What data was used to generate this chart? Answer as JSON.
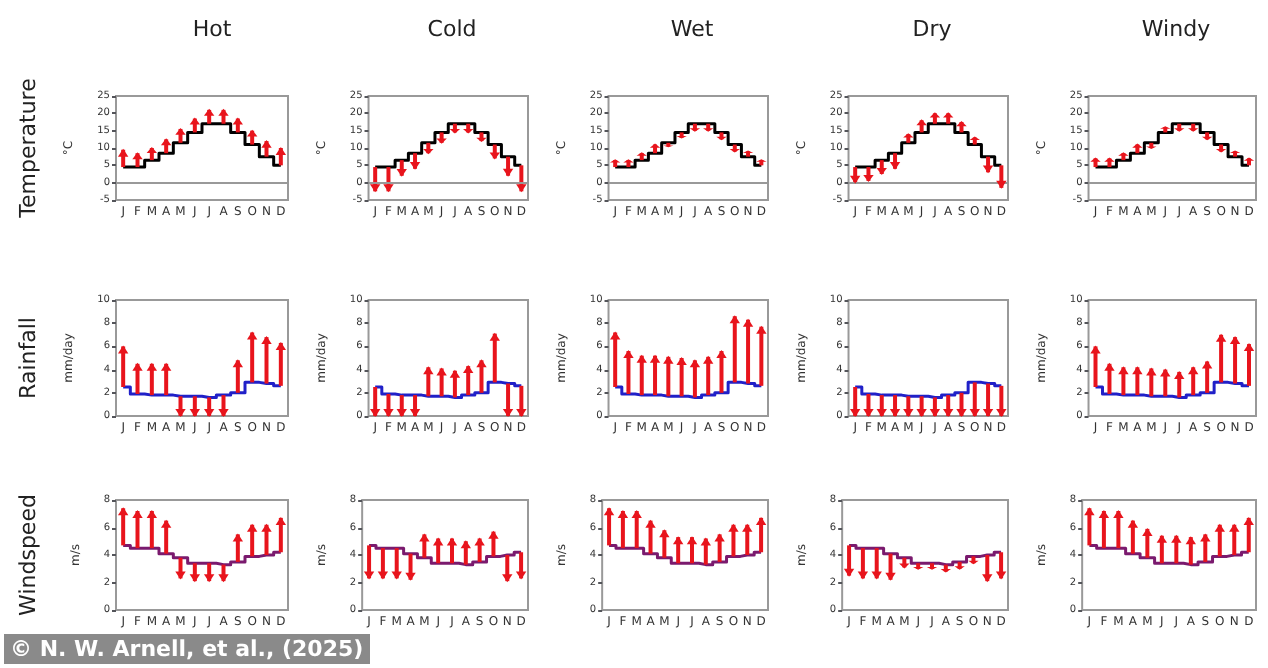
{
  "chart_data": [
    {
      "type": "step",
      "title": "Hot",
      "ylabel": "°C",
      "annotations": [
        "Temperature"
      ],
      "categories": [
        "J",
        "F",
        "M",
        "A",
        "M",
        "J",
        "J",
        "A",
        "S",
        "O",
        "N",
        "D"
      ],
      "ylim": [
        -5,
        25
      ],
      "yticks": [
        -5,
        0,
        5,
        10,
        15,
        20,
        25
      ],
      "grid": false,
      "ref_lines": [
        {
          "axis": "y",
          "value": 0,
          "color": "#999999"
        }
      ],
      "series": [
        {
          "color": "#000000",
          "values": [
            4.5,
            4.5,
            6.5,
            8.5,
            11.5,
            14.5,
            17,
            17,
            14.5,
            11,
            7.5,
            5
          ]
        },
        {
          "type": "bar",
          "color": "#e8141c",
          "base": [
            4.5,
            4.5,
            6.5,
            8.5,
            11.5,
            14.5,
            17,
            17,
            14.5,
            11,
            7.5,
            5
          ],
          "values": [
            5,
            4,
            3.5,
            4,
            4,
            4,
            4,
            4,
            4,
            4,
            4.5,
            5
          ]
        }
      ]
    },
    {
      "type": "step",
      "title": "Cold",
      "ylabel": "°C",
      "categories": [
        "J",
        "F",
        "M",
        "A",
        "M",
        "J",
        "J",
        "A",
        "S",
        "O",
        "N",
        "D"
      ],
      "ylim": [
        -5,
        25
      ],
      "yticks": [
        -5,
        0,
        5,
        10,
        15,
        20,
        25
      ],
      "grid": false,
      "ref_lines": [
        {
          "axis": "y",
          "value": 0,
          "color": "#999999"
        }
      ],
      "series": [
        {
          "color": "#000000",
          "values": [
            4.5,
            4.5,
            6.5,
            8.5,
            11.5,
            14.5,
            17,
            17,
            14.5,
            11,
            7.5,
            5
          ]
        },
        {
          "type": "bar",
          "color": "#e8141c",
          "base": [
            4.5,
            4.5,
            6.5,
            8.5,
            11.5,
            14.5,
            17,
            17,
            14.5,
            11,
            7.5,
            5
          ],
          "values": [
            -7,
            -7,
            -4.5,
            -4.5,
            -3,
            -3,
            -2.5,
            -2.5,
            -2.5,
            -4,
            -5.5,
            -7.5
          ]
        }
      ]
    },
    {
      "type": "step",
      "title": "Wet",
      "ylabel": "°C",
      "categories": [
        "J",
        "F",
        "M",
        "A",
        "M",
        "J",
        "J",
        "A",
        "S",
        "O",
        "N",
        "D"
      ],
      "ylim": [
        -5,
        25
      ],
      "yticks": [
        -5,
        0,
        5,
        10,
        15,
        20,
        25
      ],
      "grid": false,
      "ref_lines": [
        {
          "axis": "y",
          "value": 0,
          "color": "#999999"
        }
      ],
      "series": [
        {
          "color": "#000000",
          "values": [
            4.5,
            4.5,
            6.5,
            8.5,
            11.5,
            14.5,
            17,
            17,
            14.5,
            11,
            7.5,
            5
          ]
        },
        {
          "type": "bar",
          "color": "#e8141c",
          "base": [
            4.5,
            4.5,
            6.5,
            8.5,
            11.5,
            14.5,
            17,
            17,
            14.5,
            11,
            7.5,
            5
          ],
          "values": [
            2,
            2,
            2,
            2.5,
            -1,
            -1.5,
            -2,
            -2,
            -2,
            -2,
            1.5,
            1.5
          ]
        }
      ]
    },
    {
      "type": "step",
      "title": "Dry",
      "ylabel": "°C",
      "categories": [
        "J",
        "F",
        "M",
        "A",
        "M",
        "J",
        "J",
        "A",
        "S",
        "O",
        "N",
        "D"
      ],
      "ylim": [
        -5,
        25
      ],
      "yticks": [
        -5,
        0,
        5,
        10,
        15,
        20,
        25
      ],
      "grid": false,
      "ref_lines": [
        {
          "axis": "y",
          "value": 0,
          "color": "#999999"
        }
      ],
      "series": [
        {
          "color": "#000000",
          "values": [
            4.5,
            4.5,
            6.5,
            8.5,
            11.5,
            14.5,
            17,
            17,
            14.5,
            11,
            7.5,
            5
          ]
        },
        {
          "type": "bar",
          "color": "#e8141c",
          "base": [
            4.5,
            4.5,
            6.5,
            8.5,
            11.5,
            14.5,
            17,
            17,
            14.5,
            11,
            7.5,
            5
          ],
          "values": [
            -4.5,
            -4,
            -4,
            -4.5,
            2.5,
            3.5,
            3,
            3,
            3,
            2,
            -4.5,
            -6.5
          ]
        }
      ]
    },
    {
      "type": "step",
      "title": "Windy",
      "ylabel": "°C",
      "categories": [
        "J",
        "F",
        "M",
        "A",
        "M",
        "J",
        "J",
        "A",
        "S",
        "O",
        "N",
        "D"
      ],
      "ylim": [
        -5,
        25
      ],
      "yticks": [
        -5,
        0,
        5,
        10,
        15,
        20,
        25
      ],
      "grid": false,
      "ref_lines": [
        {
          "axis": "y",
          "value": 0,
          "color": "#999999"
        }
      ],
      "series": [
        {
          "color": "#000000",
          "values": [
            4.5,
            4.5,
            6.5,
            8.5,
            11.5,
            14.5,
            17,
            17,
            14.5,
            11,
            7.5,
            5
          ]
        },
        {
          "type": "bar",
          "color": "#e8141c",
          "base": [
            4.5,
            4.5,
            6.5,
            8.5,
            11.5,
            14.5,
            17,
            17,
            14.5,
            11,
            7.5,
            5
          ],
          "values": [
            2.5,
            2.5,
            2,
            2.5,
            -1.5,
            1.5,
            -2,
            -2,
            -2,
            -2,
            1.5,
            2
          ]
        }
      ]
    },
    {
      "type": "step",
      "ylabel": "mm/day",
      "annotations": [
        "Rainfall"
      ],
      "categories": [
        "J",
        "F",
        "M",
        "A",
        "M",
        "J",
        "J",
        "A",
        "S",
        "O",
        "N",
        "D"
      ],
      "ylim": [
        0,
        10
      ],
      "yticks": [
        0,
        2,
        4,
        6,
        8,
        10
      ],
      "grid": false,
      "series": [
        {
          "color": "#2020c8",
          "values": [
            2.5,
            1.9,
            1.8,
            1.8,
            1.7,
            1.7,
            1.6,
            1.8,
            2.0,
            2.9,
            2.8,
            2.6
          ]
        },
        {
          "type": "bar",
          "color": "#e8141c",
          "base": [
            2.5,
            1.9,
            1.8,
            1.8,
            1.7,
            1.7,
            1.6,
            1.8,
            2.0,
            2.9,
            2.8,
            2.6
          ],
          "values": [
            3.5,
            2.6,
            2.7,
            2.7,
            -1.7,
            -1.7,
            -1.6,
            -1.8,
            2.8,
            4.3,
            4,
            3.7
          ]
        }
      ]
    },
    {
      "type": "step",
      "ylabel": "mm/day",
      "categories": [
        "J",
        "F",
        "M",
        "A",
        "M",
        "J",
        "J",
        "A",
        "S",
        "O",
        "N",
        "D"
      ],
      "ylim": [
        0,
        10
      ],
      "yticks": [
        0,
        2,
        4,
        6,
        8,
        10
      ],
      "grid": false,
      "series": [
        {
          "color": "#2020c8",
          "values": [
            2.5,
            1.9,
            1.8,
            1.8,
            1.7,
            1.7,
            1.6,
            1.8,
            2.0,
            2.9,
            2.8,
            2.6
          ]
        },
        {
          "type": "bar",
          "color": "#e8141c",
          "base": [
            2.5,
            1.9,
            1.8,
            1.8,
            1.7,
            1.7,
            1.6,
            1.8,
            2.0,
            2.9,
            2.8,
            2.6
          ],
          "values": [
            -2.5,
            -1.9,
            -1.8,
            -1.8,
            2.5,
            2.4,
            2.3,
            2.5,
            2.8,
            4.2,
            -2.8,
            -2.6
          ]
        }
      ]
    },
    {
      "type": "step",
      "ylabel": "mm/day",
      "categories": [
        "J",
        "F",
        "M",
        "A",
        "M",
        "J",
        "J",
        "A",
        "S",
        "O",
        "N",
        "D"
      ],
      "ylim": [
        0,
        10
      ],
      "yticks": [
        0,
        2,
        4,
        6,
        8,
        10
      ],
      "grid": false,
      "series": [
        {
          "color": "#2020c8",
          "values": [
            2.5,
            1.9,
            1.8,
            1.8,
            1.7,
            1.7,
            1.6,
            1.8,
            2.0,
            2.9,
            2.8,
            2.6
          ]
        },
        {
          "type": "bar",
          "color": "#e8141c",
          "base": [
            2.5,
            1.9,
            1.8,
            1.8,
            1.7,
            1.7,
            1.6,
            1.8,
            2.0,
            2.9,
            2.8,
            2.6
          ],
          "values": [
            4.7,
            3.7,
            3.4,
            3.4,
            3.4,
            3.3,
            3.2,
            3.3,
            3.6,
            5.7,
            5.5,
            5.1
          ]
        }
      ]
    },
    {
      "type": "step",
      "ylabel": "mm/day",
      "categories": [
        "J",
        "F",
        "M",
        "A",
        "M",
        "J",
        "J",
        "A",
        "S",
        "O",
        "N",
        "D"
      ],
      "ylim": [
        0,
        10
      ],
      "yticks": [
        0,
        2,
        4,
        6,
        8,
        10
      ],
      "grid": false,
      "series": [
        {
          "color": "#2020c8",
          "values": [
            2.5,
            1.9,
            1.8,
            1.8,
            1.7,
            1.7,
            1.6,
            1.8,
            2.0,
            2.9,
            2.8,
            2.6
          ]
        },
        {
          "type": "bar",
          "color": "#e8141c",
          "base": [
            2.5,
            1.9,
            1.8,
            1.8,
            1.7,
            1.7,
            1.6,
            1.8,
            2.0,
            2.9,
            2.8,
            2.6
          ],
          "values": [
            -2.5,
            -1.9,
            -1.8,
            -1.8,
            -1.7,
            -1.7,
            -1.6,
            -1.8,
            -2.0,
            -2.9,
            -2.8,
            -2.6
          ]
        }
      ]
    },
    {
      "type": "step",
      "ylabel": "mm/day",
      "categories": [
        "J",
        "F",
        "M",
        "A",
        "M",
        "J",
        "J",
        "A",
        "S",
        "O",
        "N",
        "D"
      ],
      "ylim": [
        0,
        10
      ],
      "yticks": [
        0,
        2,
        4,
        6,
        8,
        10
      ],
      "grid": false,
      "series": [
        {
          "color": "#2020c8",
          "values": [
            2.5,
            1.9,
            1.8,
            1.8,
            1.7,
            1.7,
            1.6,
            1.8,
            2.0,
            2.9,
            2.8,
            2.6
          ]
        },
        {
          "type": "bar",
          "color": "#e8141c",
          "base": [
            2.5,
            1.9,
            1.8,
            1.8,
            1.7,
            1.7,
            1.6,
            1.8,
            2.0,
            2.9,
            2.8,
            2.6
          ],
          "values": [
            3.5,
            2.6,
            2.4,
            2.4,
            2.4,
            2.3,
            2.2,
            2.4,
            2.7,
            4.1,
            4,
            3.6
          ]
        }
      ]
    },
    {
      "type": "step",
      "ylabel": "m/s",
      "annotations": [
        "Windspeed",
        "© N. W. Arnell, et al., (2025)"
      ],
      "categories": [
        "J",
        "F",
        "M",
        "A",
        "M",
        "J",
        "J",
        "A",
        "S",
        "O",
        "N",
        "D"
      ],
      "ylim": [
        0,
        8
      ],
      "yticks": [
        0,
        2,
        4,
        6,
        8
      ],
      "grid": false,
      "series": [
        {
          "color": "#7a1a6e",
          "values": [
            4.7,
            4.5,
            4.5,
            4.1,
            3.8,
            3.4,
            3.4,
            3.3,
            3.5,
            3.9,
            4.0,
            4.2
          ]
        },
        {
          "type": "bar",
          "color": "#e8141c",
          "base": [
            4.7,
            4.5,
            4.5,
            4.1,
            3.8,
            3.4,
            3.4,
            3.3,
            3.5,
            3.9,
            4.0,
            4.2
          ],
          "values": [
            2.7,
            2.7,
            2.7,
            2.4,
            -1.5,
            -1.3,
            -1.3,
            -1.2,
            2,
            2.3,
            2.2,
            2.5
          ]
        }
      ]
    },
    {
      "type": "step",
      "ylabel": "m/s",
      "categories": [
        "J",
        "F",
        "M",
        "A",
        "M",
        "J",
        "J",
        "A",
        "S",
        "O",
        "N",
        "D"
      ],
      "ylim": [
        0,
        8
      ],
      "yticks": [
        0,
        2,
        4,
        6,
        8
      ],
      "grid": false,
      "series": [
        {
          "color": "#7a1a6e",
          "values": [
            4.7,
            4.5,
            4.5,
            4.1,
            3.8,
            3.4,
            3.4,
            3.3,
            3.5,
            3.9,
            4.0,
            4.2
          ]
        },
        {
          "type": "bar",
          "color": "#e8141c",
          "base": [
            4.7,
            4.5,
            4.5,
            4.1,
            3.8,
            3.4,
            3.4,
            3.3,
            3.5,
            3.9,
            4.0,
            4.2
          ],
          "values": [
            -2.4,
            -2.2,
            -2.2,
            -1.9,
            1.7,
            1.8,
            1.8,
            1.7,
            1.7,
            1.8,
            -1.9,
            -1.9
          ]
        }
      ]
    },
    {
      "type": "step",
      "ylabel": "m/s",
      "categories": [
        "J",
        "F",
        "M",
        "A",
        "M",
        "J",
        "J",
        "A",
        "S",
        "O",
        "N",
        "D"
      ],
      "ylim": [
        0,
        8
      ],
      "yticks": [
        0,
        2,
        4,
        6,
        8
      ],
      "grid": false,
      "series": [
        {
          "color": "#7a1a6e",
          "values": [
            4.7,
            4.5,
            4.5,
            4.1,
            3.8,
            3.4,
            3.4,
            3.3,
            3.5,
            3.9,
            4.0,
            4.2
          ]
        },
        {
          "type": "bar",
          "color": "#e8141c",
          "base": [
            4.7,
            4.5,
            4.5,
            4.1,
            3.8,
            3.4,
            3.4,
            3.3,
            3.5,
            3.9,
            4.0,
            4.2
          ],
          "values": [
            2.7,
            2.7,
            2.7,
            2.4,
            2,
            1.9,
            1.9,
            1.9,
            2,
            2.3,
            2.2,
            2.5
          ]
        }
      ]
    },
    {
      "type": "step",
      "ylabel": "m/s",
      "categories": [
        "J",
        "F",
        "M",
        "A",
        "M",
        "J",
        "J",
        "A",
        "S",
        "O",
        "N",
        "D"
      ],
      "ylim": [
        0,
        8
      ],
      "yticks": [
        0,
        2,
        4,
        6,
        8
      ],
      "grid": false,
      "series": [
        {
          "color": "#7a1a6e",
          "values": [
            4.7,
            4.5,
            4.5,
            4.1,
            3.8,
            3.4,
            3.4,
            3.3,
            3.5,
            3.9,
            4.0,
            4.2
          ]
        },
        {
          "type": "bar",
          "color": "#e8141c",
          "base": [
            4.7,
            4.5,
            4.5,
            4.1,
            3.8,
            3.4,
            3.4,
            3.3,
            3.5,
            3.9,
            4.0,
            4.2
          ],
          "values": [
            -2.2,
            -2.2,
            -2.2,
            -1.9,
            -0.7,
            -0.4,
            -0.4,
            -0.5,
            -0.5,
            -0.5,
            -1.9,
            -1.9
          ]
        }
      ]
    },
    {
      "type": "step",
      "ylabel": "m/s",
      "categories": [
        "J",
        "F",
        "M",
        "A",
        "M",
        "J",
        "J",
        "A",
        "S",
        "O",
        "N",
        "D"
      ],
      "ylim": [
        0,
        8
      ],
      "yticks": [
        0,
        2,
        4,
        6,
        8
      ],
      "grid": false,
      "series": [
        {
          "color": "#7a1a6e",
          "values": [
            4.7,
            4.5,
            4.5,
            4.1,
            3.8,
            3.4,
            3.4,
            3.3,
            3.5,
            3.9,
            4.0,
            4.2
          ]
        },
        {
          "type": "bar",
          "color": "#e8141c",
          "base": [
            4.7,
            4.5,
            4.5,
            4.1,
            3.8,
            3.4,
            3.4,
            3.3,
            3.5,
            3.9,
            4.0,
            4.2
          ],
          "values": [
            2.7,
            2.7,
            2.7,
            2.4,
            2.1,
            2,
            2,
            2,
            2,
            2.3,
            2.2,
            2.5
          ]
        }
      ]
    }
  ]
}
